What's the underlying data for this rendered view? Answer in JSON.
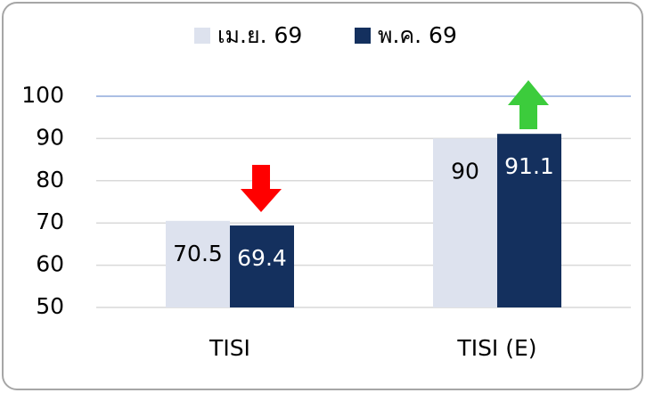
{
  "chart_data": {
    "type": "bar",
    "categories": [
      "TISI",
      "TISI (E)"
    ],
    "series": [
      {
        "name": "เม.ย. 69",
        "color": "#dde2ee",
        "values": [
          70.5,
          90
        ]
      },
      {
        "name": "พ.ค. 69",
        "color": "#14305e",
        "values": [
          69.4,
          91.1
        ]
      }
    ],
    "ylim": [
      50,
      100
    ],
    "yticks": [
      50,
      60,
      70,
      80,
      90,
      100
    ],
    "grid": true
  }
}
